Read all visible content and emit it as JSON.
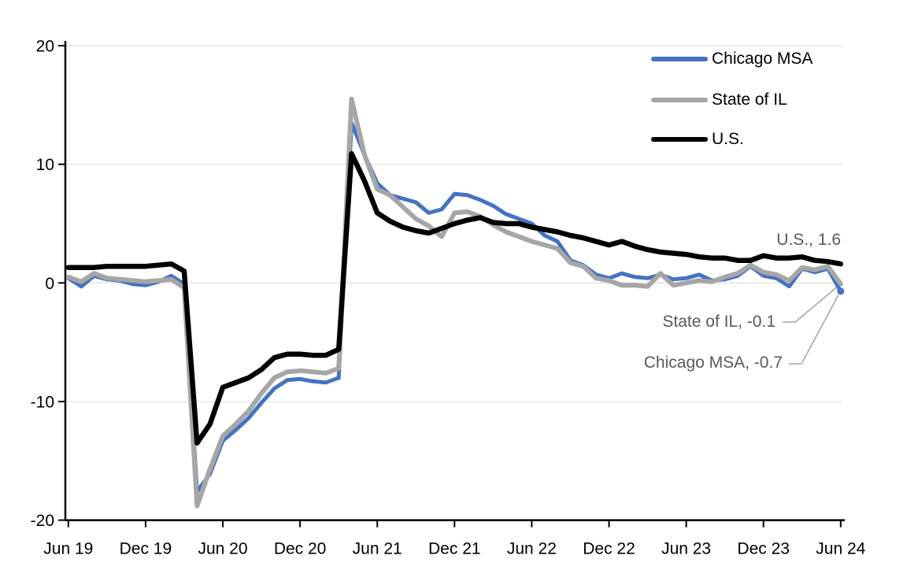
{
  "chart_data": {
    "type": "line",
    "title": "",
    "x_start": "Jun 2019",
    "x_end": "Jun 2024",
    "frequency": "monthly",
    "x_tick_labels": [
      "Jun 19",
      "Dec 19",
      "Jun 20",
      "Dec 20",
      "Jun 21",
      "Dec 21",
      "Jun 22",
      "Dec 22",
      "Jun 23",
      "Dec 23",
      "Jun 24"
    ],
    "y_ticks": [
      20,
      10,
      0,
      -10,
      -20
    ],
    "ylim": [
      -20,
      20
    ],
    "grid": true,
    "legend_position": "top-right",
    "series": [
      {
        "name": "Chicago MSA",
        "color": "#4472C4",
        "end_value": -0.7,
        "end_label": "Chicago MSA, -0.7",
        "values": [
          0.4,
          -0.3,
          0.6,
          0.3,
          0.2,
          -0.1,
          -0.2,
          0.1,
          0.6,
          -0.1,
          -17.6,
          -16.1,
          -13.3,
          -12.4,
          -11.4,
          -10.1,
          -8.9,
          -8.2,
          -8.1,
          -8.3,
          -8.4,
          -8.0,
          13.5,
          10.8,
          8.4,
          7.4,
          7.1,
          6.8,
          5.9,
          6.2,
          7.5,
          7.4,
          7.0,
          6.5,
          5.8,
          5.4,
          5.0,
          4.0,
          3.5,
          1.9,
          1.5,
          0.7,
          0.4,
          0.8,
          0.5,
          0.4,
          0.7,
          0.3,
          0.4,
          0.7,
          0.2,
          0.3,
          0.6,
          1.4,
          0.6,
          0.4,
          -0.3,
          1.2,
          0.9,
          1.2,
          -0.7
        ]
      },
      {
        "name": "State of IL",
        "color": "#A6A6A6",
        "end_value": -0.1,
        "end_label": "State of IL, -0.1",
        "values": [
          0.5,
          0.1,
          0.8,
          0.4,
          0.3,
          0.2,
          0.1,
          0.2,
          0.3,
          -0.4,
          -18.8,
          -15.7,
          -12.9,
          -11.9,
          -10.8,
          -9.3,
          -8.0,
          -7.5,
          -7.4,
          -7.5,
          -7.6,
          -7.2,
          15.5,
          10.8,
          7.9,
          7.4,
          6.4,
          5.4,
          4.8,
          3.9,
          5.9,
          6.0,
          5.6,
          4.9,
          4.3,
          3.9,
          3.5,
          3.2,
          2.9,
          1.7,
          1.4,
          0.4,
          0.2,
          -0.2,
          -0.2,
          -0.3,
          0.8,
          -0.2,
          0.0,
          0.2,
          0.1,
          0.5,
          0.8,
          1.5,
          0.9,
          0.7,
          0.2,
          1.3,
          1.1,
          1.4,
          -0.1
        ]
      },
      {
        "name": "U.S.",
        "color": "#000000",
        "end_value": 1.6,
        "end_label": "U.S., 1.6",
        "values": [
          1.3,
          1.3,
          1.3,
          1.4,
          1.4,
          1.4,
          1.4,
          1.5,
          1.6,
          1.0,
          -13.5,
          -11.9,
          -8.8,
          -8.4,
          -8.0,
          -7.3,
          -6.3,
          -6.0,
          -6.0,
          -6.1,
          -6.1,
          -5.6,
          10.9,
          8.6,
          5.9,
          5.2,
          4.7,
          4.4,
          4.2,
          4.6,
          5.0,
          5.3,
          5.5,
          5.1,
          5.0,
          5.0,
          4.7,
          4.5,
          4.3,
          4.0,
          3.8,
          3.5,
          3.2,
          3.5,
          3.1,
          2.8,
          2.6,
          2.5,
          2.4,
          2.2,
          2.1,
          2.1,
          1.9,
          1.9,
          2.3,
          2.1,
          2.1,
          2.2,
          1.9,
          1.8,
          1.6
        ]
      }
    ],
    "colors": {
      "grid": "#D9D9D9",
      "axis": "#000000",
      "tick_label": "#000000",
      "annotation_text": "#595959",
      "leader_line": "#A6A6A6"
    }
  }
}
